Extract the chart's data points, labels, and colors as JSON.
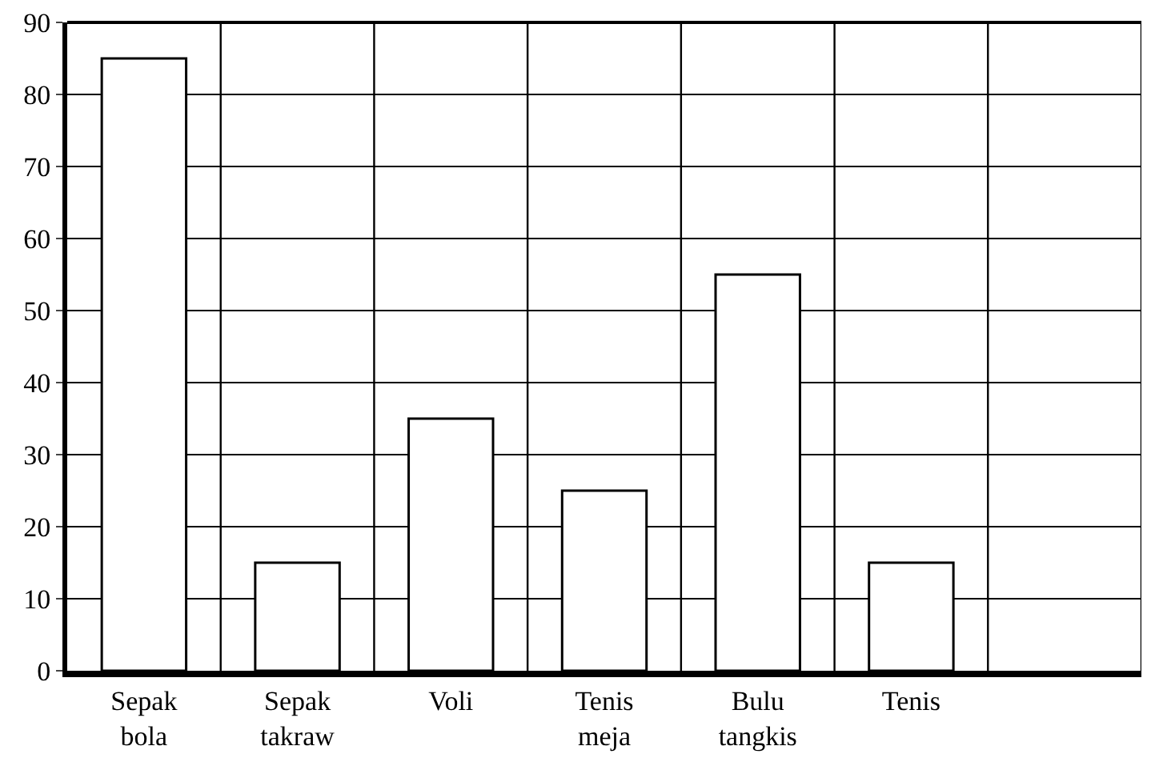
{
  "chart_data": {
    "type": "bar",
    "categories": [
      "Sepak bola",
      "Sepak takraw",
      "Voli",
      "Tenis meja",
      "Bulu tangkis",
      "Tenis",
      null
    ],
    "values": [
      85,
      15,
      35,
      25,
      55,
      15,
      null
    ],
    "color": "#ffffff",
    "ylim": [
      0,
      90
    ],
    "yticks": [
      0,
      10,
      20,
      30,
      40,
      50,
      60,
      70,
      80,
      90
    ],
    "grid": true
  }
}
